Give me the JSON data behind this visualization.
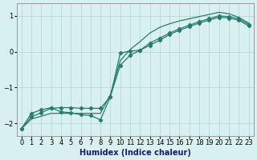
{
  "xlabel": "Humidex (Indice chaleur)",
  "bg_color": "#d8f0f0",
  "grid_color": "#b8d8d8",
  "line_color": "#2a7a6e",
  "xlim": [
    -0.5,
    23.5
  ],
  "ylim": [
    -2.35,
    1.35
  ],
  "yticks": [
    -2,
    -1,
    0,
    1
  ],
  "xticks": [
    0,
    1,
    2,
    3,
    4,
    5,
    6,
    7,
    8,
    9,
    10,
    11,
    12,
    13,
    14,
    15,
    16,
    17,
    18,
    19,
    20,
    21,
    22,
    23
  ],
  "line1_x": [
    0,
    1,
    2,
    3,
    4,
    5,
    6,
    7,
    8,
    9,
    10,
    11,
    12,
    13,
    14,
    15,
    16,
    17,
    18,
    19,
    20,
    21,
    22,
    23
  ],
  "line1_y": [
    -2.15,
    -1.82,
    -1.7,
    -1.58,
    -1.56,
    -1.56,
    -1.58,
    -1.58,
    -1.58,
    -1.25,
    -0.38,
    -0.1,
    0.04,
    0.18,
    0.32,
    0.48,
    0.6,
    0.7,
    0.8,
    0.88,
    0.96,
    0.94,
    0.88,
    0.72
  ],
  "line2_x": [
    0,
    1,
    2,
    3,
    4,
    5,
    6,
    7,
    8,
    9,
    10,
    11,
    12,
    13,
    14,
    15,
    16,
    17,
    18,
    19,
    20,
    21,
    22,
    23
  ],
  "line2_y": [
    -2.15,
    -1.72,
    -1.62,
    -1.56,
    -1.68,
    -1.7,
    -1.76,
    -1.78,
    -1.9,
    -1.26,
    -0.04,
    0.02,
    0.04,
    0.24,
    0.38,
    0.52,
    0.64,
    0.74,
    0.84,
    0.92,
    1.0,
    0.98,
    0.92,
    0.76
  ],
  "line3_x": [
    0,
    1,
    2,
    3,
    4,
    5,
    6,
    7,
    8,
    9,
    10,
    11,
    12,
    13,
    14,
    15,
    16,
    17,
    18,
    19,
    20,
    21,
    22,
    23
  ],
  "line3_y": [
    -2.15,
    -1.88,
    -1.8,
    -1.72,
    -1.72,
    -1.72,
    -1.72,
    -1.72,
    -1.72,
    -1.2,
    -0.25,
    0.06,
    0.28,
    0.52,
    0.68,
    0.78,
    0.86,
    0.92,
    0.98,
    1.04,
    1.1,
    1.06,
    0.96,
    0.8
  ]
}
